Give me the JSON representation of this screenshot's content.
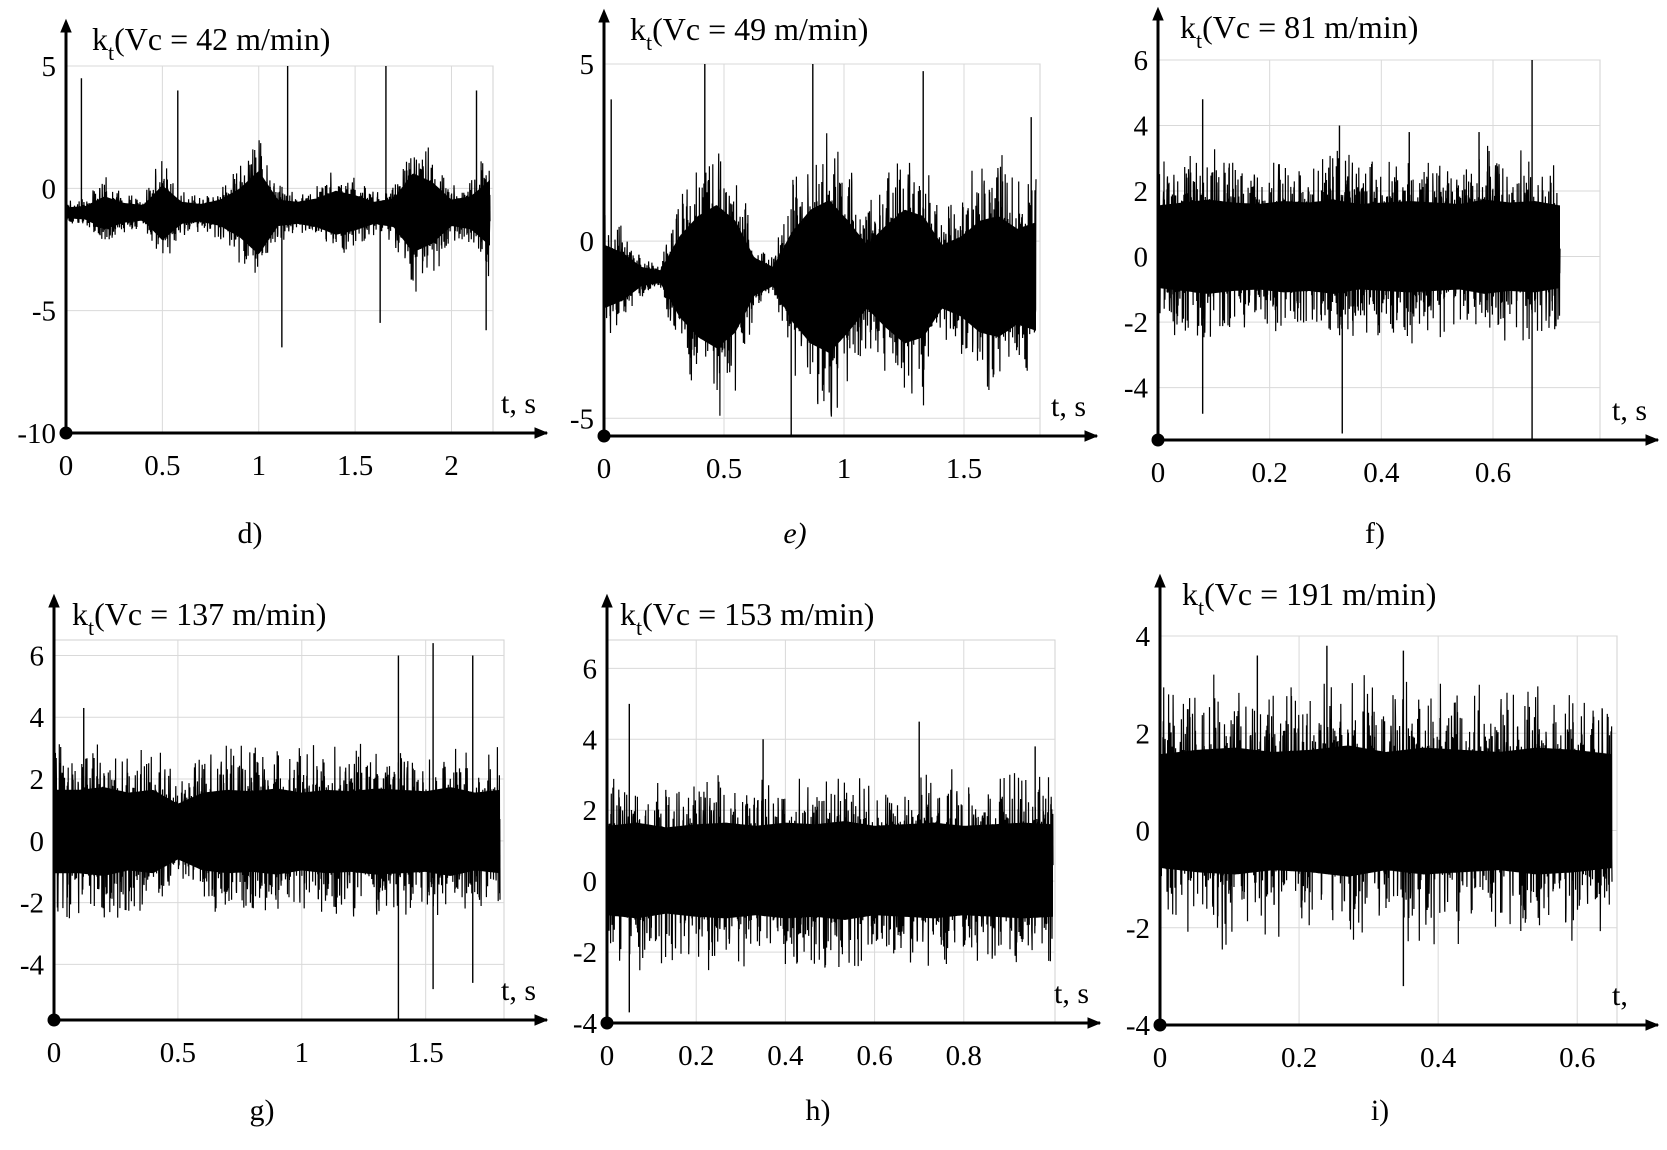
{
  "chart_data": [
    {
      "type": "line",
      "panel_label": "d)",
      "title": "k",
      "title_sub": "t",
      "title_rest": "(Vc = 42 m/min)",
      "xlabel": "t, s",
      "ylabel": "",
      "xlim": [
        0,
        2.2
      ],
      "ylim": [
        -10,
        5
      ],
      "xticks": [
        0,
        0.5,
        1,
        1.5,
        2
      ],
      "xtick_labels": [
        "0",
        "0.5",
        "1",
        "1.5",
        "2"
      ],
      "yticks": [
        -10,
        -5,
        0,
        5
      ],
      "ytick_labels": [
        "-10",
        "-5",
        "0",
        "5"
      ],
      "grid": true,
      "signal": {
        "mean": -1.0,
        "envelope": [
          0.5,
          0.6,
          1.5,
          0.9,
          0.7,
          2.5,
          1.0,
          0.8,
          1.2,
          2.2,
          3.8,
          1.2,
          1.0,
          1.3,
          2.0,
          1.6,
          1.0,
          1.3,
          3.6,
          2.8,
          1.2,
          1.5,
          3.0
        ],
        "spikes": [
          [
            0.08,
            4.5
          ],
          [
            0.58,
            4.0
          ],
          [
            1.12,
            -6.5
          ],
          [
            1.15,
            6.0
          ],
          [
            1.63,
            -5.5
          ],
          [
            1.66,
            6.2
          ],
          [
            2.13,
            4.0
          ],
          [
            2.18,
            -5.8
          ]
        ]
      }
    },
    {
      "type": "line",
      "panel_label": "e)",
      "title": "k",
      "title_sub": "t",
      "title_rest": "(Vc = 49 m/min)",
      "xlabel": "t, s",
      "ylabel": "",
      "xlim": [
        0,
        1.8
      ],
      "ylim": [
        -5.5,
        5
      ],
      "xticks": [
        0,
        0.5,
        1,
        1.5
      ],
      "xtick_labels": [
        "0",
        "0.5",
        "1",
        "1.5"
      ],
      "yticks": [
        -5,
        0,
        5
      ],
      "ytick_labels": [
        "-5",
        "0",
        "5"
      ],
      "grid": true,
      "signal": {
        "mean": -1.0,
        "envelope": [
          2.0,
          1.5,
          0.6,
          0.4,
          2.5,
          3.8,
          4.5,
          3.5,
          1.2,
          0.6,
          2.8,
          4.2,
          4.8,
          3.5,
          2.0,
          3.2,
          4.2,
          3.8,
          2.0,
          2.5,
          3.5,
          3.8,
          3.0,
          3.4
        ],
        "spikes": [
          [
            0.03,
            4.0
          ],
          [
            0.42,
            5.2
          ],
          [
            0.78,
            -5.5
          ],
          [
            0.87,
            5.0
          ],
          [
            1.33,
            4.8
          ],
          [
            1.78,
            3.5
          ]
        ]
      }
    },
    {
      "type": "line",
      "panel_label": "f)",
      "title": "k",
      "title_sub": "t",
      "title_rest": "(Vc = 81 m/min)",
      "xlabel": "t, s",
      "ylabel": "",
      "xlim": [
        0,
        0.72
      ],
      "ylim": [
        -5.6,
        6
      ],
      "xticks": [
        0,
        0.2,
        0.4,
        0.6
      ],
      "xtick_labels": [
        "0",
        "0.2",
        "0.4",
        "0.6"
      ],
      "yticks": [
        -4,
        -2,
        0,
        2,
        4,
        6
      ],
      "ytick_labels": [
        "-4",
        "-2",
        "0",
        "2",
        "4",
        "6"
      ],
      "grid": true,
      "signal": {
        "mean": 0.3,
        "envelope": [
          2.8,
          3.0,
          3.2,
          3.0,
          2.9,
          3.1,
          3.0,
          3.2,
          2.9,
          3.0,
          3.1,
          3.0,
          2.9,
          3.2,
          3.0,
          3.1,
          2.8
        ],
        "spikes": [
          [
            0.08,
            4.8
          ],
          [
            0.08,
            -4.8
          ],
          [
            0.325,
            4.0
          ],
          [
            0.33,
            -5.4
          ],
          [
            0.45,
            3.8
          ],
          [
            0.575,
            3.8
          ],
          [
            0.67,
            6.0
          ],
          [
            0.67,
            -5.6
          ]
        ]
      }
    },
    {
      "type": "line",
      "panel_label": "g)",
      "title": "k",
      "title_sub": "t",
      "title_rest": "(Vc = 137 m/min)",
      "xlabel": "t, s",
      "ylabel": "",
      "xlim": [
        0,
        1.8
      ],
      "ylim": [
        -5.8,
        6.5
      ],
      "xticks": [
        0,
        0.5,
        1,
        1.5
      ],
      "xtick_labels": [
        "0",
        "0.5",
        "1",
        "1.5"
      ],
      "yticks": [
        -4,
        -2,
        0,
        2,
        4,
        6
      ],
      "ytick_labels": [
        "-4",
        "-2",
        "0",
        "2",
        "4",
        "6"
      ],
      "grid": true,
      "signal": {
        "mean": 0.3,
        "envelope": [
          3.0,
          3.0,
          3.2,
          2.8,
          3.0,
          2.0,
          2.8,
          3.0,
          2.9,
          3.1,
          2.8,
          3.0,
          2.9,
          3.1,
          3.0,
          2.9,
          3.2,
          2.8,
          3.0
        ],
        "spikes": [
          [
            0.12,
            4.3
          ],
          [
            1.39,
            6.0
          ],
          [
            1.39,
            -5.8
          ],
          [
            1.53,
            6.4
          ],
          [
            1.53,
            -4.8
          ],
          [
            1.69,
            6.0
          ],
          [
            1.69,
            -4.6
          ]
        ]
      }
    },
    {
      "type": "line",
      "panel_label": "h)",
      "title": "k",
      "title_sub": "t",
      "title_rest": "(Vc = 153 m/min)",
      "xlabel": "t, s",
      "ylabel": "",
      "xlim": [
        0,
        1.0
      ],
      "ylim": [
        -4,
        6.8
      ],
      "xticks": [
        0,
        0.2,
        0.4,
        0.6,
        0.8
      ],
      "xtick_labels": [
        "0",
        "0.2",
        "0.4",
        "0.6",
        "0.8"
      ],
      "yticks": [
        -4,
        -2,
        0,
        2,
        4,
        6
      ],
      "ytick_labels": [
        "-4",
        "-2",
        "0",
        "2",
        "4",
        "6"
      ],
      "grid": true,
      "signal": {
        "mean": 0.3,
        "envelope": [
          2.8,
          3.0,
          2.7,
          2.9,
          3.0,
          2.8,
          3.0,
          2.9,
          3.1,
          2.8,
          2.9,
          3.0,
          2.8,
          2.9,
          3.0,
          2.9
        ],
        "spikes": [
          [
            0.05,
            5.0
          ],
          [
            0.05,
            -3.7
          ],
          [
            0.35,
            4.0
          ],
          [
            0.7,
            4.5
          ],
          [
            0.96,
            3.8
          ]
        ]
      }
    },
    {
      "type": "line",
      "panel_label": "i)",
      "title": "k",
      "title_sub": "t",
      "title_rest": "(Vc = 191 m/min)",
      "xlabel": "t,",
      "ylabel": "",
      "xlim": [
        0,
        0.65
      ],
      "ylim": [
        -4,
        4
      ],
      "xticks": [
        0,
        0.2,
        0.4,
        0.6
      ],
      "xtick_labels": [
        "0",
        "0.2",
        "0.4",
        "0.6"
      ],
      "yticks": [
        -4,
        -2,
        0,
        2,
        4
      ],
      "ytick_labels": [
        "-4",
        "-2",
        "0",
        "2",
        "4"
      ],
      "grid": true,
      "signal": {
        "mean": 0.4,
        "envelope": [
          2.6,
          2.8,
          2.9,
          2.7,
          2.8,
          3.0,
          2.7,
          2.9,
          2.8,
          2.7,
          2.9,
          2.8,
          2.6
        ],
        "spikes": [
          [
            0.14,
            3.6
          ],
          [
            0.24,
            3.8
          ],
          [
            0.35,
            -3.2
          ],
          [
            0.35,
            3.7
          ]
        ]
      }
    }
  ]
}
